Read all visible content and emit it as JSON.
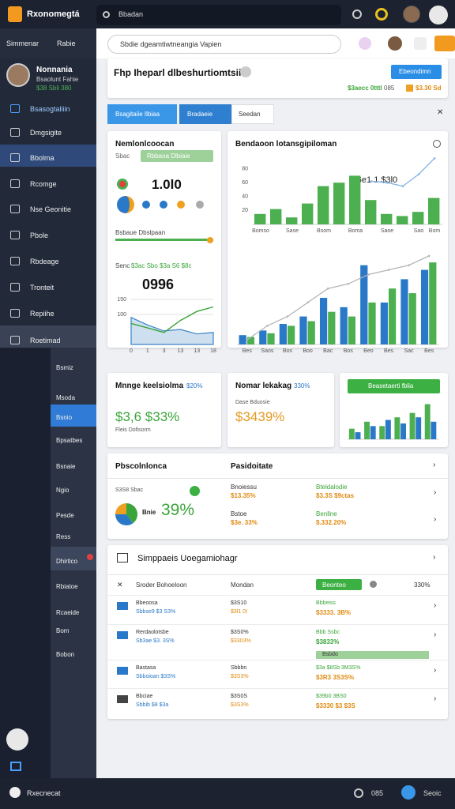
{
  "topbar": {
    "brand": "Rxonomegtá",
    "search": "Bbadan"
  },
  "subbar": {
    "left": "Simmenar",
    "right": "Rabie",
    "search": "Sbdie dgeamtiwtneangia Vapien"
  },
  "profile": {
    "name": "Nonnania",
    "line1": "Bsaolunt Fahie",
    "line2": "$38 Sbli 380"
  },
  "menu": [
    "Bsasogtaliiin",
    "Dmgsigite",
    "Bbolma",
    "Rcomge",
    "Nse Geonitie",
    "Pbole",
    "Rbdeage",
    "Tronteit",
    "Repiihe",
    "Roetimad"
  ],
  "submenu": [
    "Bsmiz",
    "Msoda",
    "Bsnio",
    "Bpsatbes",
    "Bsnaie",
    "Ngio",
    "Pesde",
    "Ress",
    "Dhirtico",
    "Rbiatoe",
    "Rcaeide",
    "Bom",
    "Bobon"
  ],
  "footer": {
    "brand": "Rxecnecat",
    "count": "085",
    "label": "Seoic"
  },
  "header": {
    "title": "Fhp Iheparl dlbeshurtiomtsiia",
    "button": "Ebeondimn",
    "stat1": "$3aecc 0tttl",
    "stat1b": "085",
    "stat2": "$3.30 Sd"
  },
  "tabs": [
    "Bsagitaiie Ilbiaa",
    "Bradaeie",
    "Seedan"
  ],
  "overview": {
    "title": "Nemlonlcoocan",
    "sub": "Sbac",
    "badge": "Rbbaoa Dlbiaie",
    "big": "1.0l0",
    "legend": "Bsbaue Dbslpaan",
    "sub2": "Senc",
    "sub2_values": "$3ac Sbo $3a S6 $8c",
    "bignum": "0996"
  },
  "trend": {
    "title": "Bendaoon lotansgipiloman",
    "annotation": "Sl6e1 1 $3l0"
  },
  "metrics": [
    {
      "title": "Mnnge keelsiolma",
      "pct": "$20%",
      "value": "$3,6 $33%",
      "sub": "Fleis Dofisorm"
    },
    {
      "title": "Nomar lekakag",
      "pct": "330%",
      "value": "$3439%",
      "sub": "Dase Bduosie"
    },
    {
      "button": "Beasetaerti fblia"
    }
  ],
  "portfolio": {
    "title": "Pbscolnlonca",
    "title2": "Pasidoitate",
    "note": "S3S8 Sbac",
    "sub": "Bnie",
    "pct": "39%",
    "items": [
      {
        "name": "Bnoiessu",
        "value": "$13.35%"
      },
      {
        "name": "Bteldalodie",
        "value": "$3.3S $9ctas"
      },
      {
        "name": "Bstoe",
        "value": "$3e. 33%"
      },
      {
        "name": "Benllne",
        "value": "$.332.20%"
      }
    ]
  },
  "table": {
    "title": "Simppaeis Uoegamiohagr",
    "headers": [
      "Sroder Bohoeloon",
      "Mondan",
      "Beonteo",
      "330%"
    ],
    "tag": "Bsbdo",
    "rows": [
      {
        "name": "Bbeoosa",
        "sub": "Sbbse9 $3 S3%",
        "c2a": "$3S10",
        "c2b": "$3l1 0I",
        "c3a": "Bbbeiss",
        "c3b": "$3333. 3B%"
      },
      {
        "name": "Rerdaolotsbe",
        "sub": "Sb3ae $3. 3S%",
        "c2a": "$3S0%",
        "c2b": "$3303%",
        "c3a": "Bbb Ssbc",
        "c3b": "$3833%"
      },
      {
        "name": "Bastasa",
        "sub": "Sbboioan $3S%",
        "c2a": "Sbbbn",
        "c2b": "$3S3%",
        "c3a": "$3a $8Sb 3M3S%",
        "c3b": "$3R3 3S3S%"
      },
      {
        "name": "Bbciae",
        "sub": "Sbbib $8 $3a",
        "c2a": "$3S0S",
        "c2b": "$3S3%",
        "c3a": "$39b0 3BS0",
        "c3b": "$3330 $3 $3S"
      }
    ]
  },
  "chart_data": [
    {
      "type": "area",
      "categories": [
        "0",
        "1",
        "3",
        "13",
        "13",
        "18"
      ],
      "ylim": [
        0,
        200
      ],
      "yticks": [
        100,
        150
      ],
      "grid": true,
      "series": [
        {
          "color": "#3b82c4",
          "values": [
            90,
            65,
            45,
            50,
            35,
            40
          ]
        },
        {
          "color": "#3aa53a",
          "values": [
            70,
            55,
            40,
            80,
            110,
            125
          ]
        }
      ]
    },
    {
      "type": "bar",
      "categories": [
        "Bomso",
        null,
        "Sase",
        null,
        "Bsom",
        null,
        "Boma",
        null,
        "Saoe",
        null,
        "Sao",
        "Bom"
      ],
      "ylim": [
        0,
        100
      ],
      "yticks": [
        20,
        40,
        60,
        80
      ],
      "grid": false,
      "series": [
        {
          "color": "#4caf50",
          "values": [
            15,
            22,
            10,
            30,
            55,
            60,
            70,
            35,
            15,
            12,
            18,
            38
          ]
        },
        {
          "type": "line",
          "color": "#7fb3e6",
          "values": [
            null,
            null,
            null,
            null,
            null,
            null,
            null,
            62,
            60,
            55,
            72,
            95
          ]
        }
      ]
    },
    {
      "type": "bar",
      "categories": [
        "Bes",
        "Saos",
        "Bos",
        "Boo",
        "Bac",
        "Bos",
        "Beo",
        "Bes",
        "Sac",
        "Bes"
      ],
      "ylim": [
        0,
        100
      ],
      "grid": true,
      "series": [
        {
          "color": "#2a78c8",
          "values": [
            10,
            15,
            22,
            30,
            50,
            40,
            85,
            45,
            70,
            80
          ]
        },
        {
          "color": "#4caf50",
          "values": [
            8,
            12,
            20,
            25,
            35,
            30,
            45,
            60,
            55,
            88
          ]
        },
        {
          "type": "line",
          "color": "#b5b5b5",
          "values": [
            5,
            20,
            30,
            45,
            60,
            65,
            75,
            80,
            85,
            95
          ]
        }
      ]
    },
    {
      "type": "bar",
      "categories": [
        null,
        null,
        null,
        null,
        null,
        null
      ],
      "ylim": [
        0,
        45
      ],
      "grid": false,
      "series": [
        {
          "color": "#4caf50",
          "values": [
            12,
            20,
            15,
            25,
            30,
            40
          ]
        },
        {
          "color": "#2a78c8",
          "values": [
            8,
            15,
            22,
            18,
            25,
            20
          ]
        }
      ]
    },
    {
      "type": "pie",
      "values": [
        40,
        35,
        25
      ],
      "colors": [
        "#3aa53a",
        "#2a78c8",
        "#f0a020"
      ]
    }
  ]
}
